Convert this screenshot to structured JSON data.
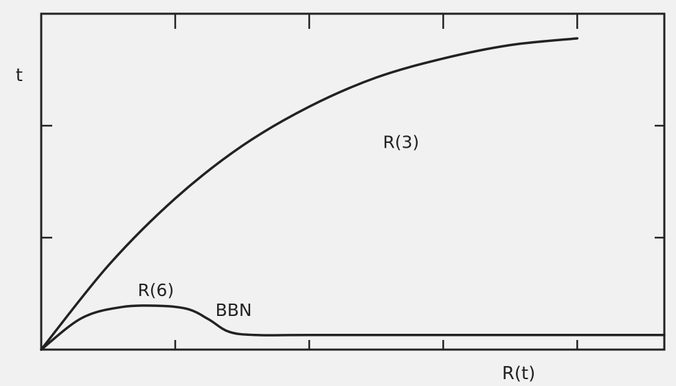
{
  "chart_data": {
    "type": "line",
    "xlabel": "R(t)",
    "ylabel": "t",
    "xlim": [
      0,
      4.65
    ],
    "ylim": [
      0,
      3
    ],
    "xticks": [
      1,
      2,
      3,
      4
    ],
    "yticks": [
      1,
      2
    ],
    "tick_labels_shown": false,
    "grid": false,
    "legend": "none",
    "series": [
      {
        "name": "R(3)",
        "color": "#222222",
        "x": [
          0,
          0.5,
          1.0,
          1.5,
          2.0,
          2.5,
          3.0,
          3.5,
          4.0
        ],
        "y": [
          0,
          0.75,
          1.35,
          1.82,
          2.17,
          2.43,
          2.6,
          2.72,
          2.78
        ]
      },
      {
        "name": "R(6)",
        "color": "#222222",
        "x": [
          0,
          0.3,
          0.6,
          0.9,
          1.1,
          1.25,
          1.4,
          1.6,
          2.0,
          3.0,
          4.0,
          4.65
        ],
        "y": [
          0,
          0.28,
          0.38,
          0.39,
          0.36,
          0.27,
          0.16,
          0.13,
          0.13,
          0.13,
          0.13,
          0.13
        ]
      }
    ],
    "annotations": [
      {
        "text": "R(3)",
        "x": 2.55,
        "y": 1.8
      },
      {
        "text": "R(6)",
        "x": 0.72,
        "y": 0.48
      },
      {
        "text": "BBN",
        "x": 1.3,
        "y": 0.3
      }
    ]
  }
}
